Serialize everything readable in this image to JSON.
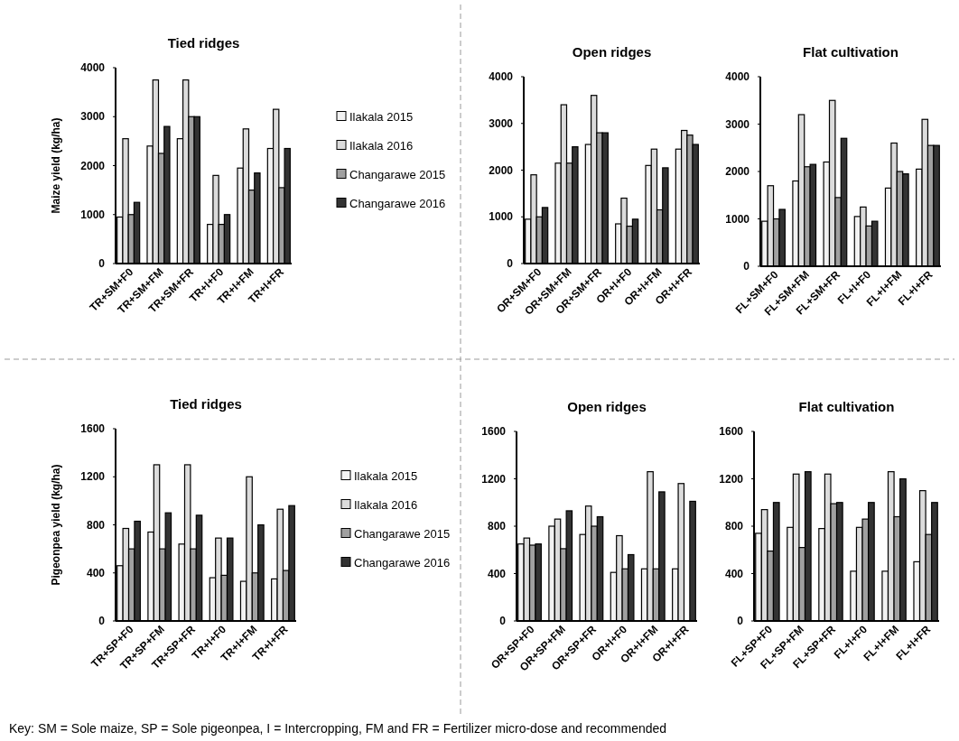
{
  "chart_data": [
    {
      "type": "bar",
      "title": "Tied ridges",
      "ylabel": "Maize yield (kg/ha)",
      "categories": [
        "TR+SM+F0",
        "TR+SM+FM",
        "TR+SM+FR",
        "TR+I+F0",
        "TR+I+FM",
        "TR+I+FR"
      ],
      "ylim": [
        0,
        4000
      ],
      "yticks": [
        0,
        1000,
        2000,
        3000,
        4000
      ],
      "legend": "right",
      "annotations": [
        "Key: SM = Sole maize, SP = Sole pigeonpea, I = Intercropping, FM and FR = Fertilizer micro-dose and recommended"
      ],
      "series": [
        {
          "name": "Ilakala 2015",
          "color": "#f2f2f2",
          "values": [
            950,
            2400,
            2550,
            800,
            1950,
            2350
          ]
        },
        {
          "name": "Ilakala 2016",
          "color": "#dcdcdc",
          "values": [
            2550,
            3750,
            3750,
            1800,
            2750,
            3150
          ]
        },
        {
          "name": "Changarawe 2015",
          "color": "#a0a0a0",
          "values": [
            1000,
            2250,
            3000,
            800,
            1500,
            1550
          ]
        },
        {
          "name": "Changarawe 2016",
          "color": "#333333",
          "values": [
            1250,
            2800,
            3000,
            1000,
            1850,
            2350
          ]
        }
      ]
    },
    {
      "type": "bar",
      "title": "Open ridges",
      "categories": [
        "OR+SM+F0",
        "OR+SM+FM",
        "OR+SM+FR",
        "OR+I+F0",
        "OR+I+FM",
        "OR+I+FR"
      ],
      "ylim": [
        0,
        4000
      ],
      "yticks": [
        0,
        1000,
        2000,
        3000,
        4000
      ],
      "series": [
        {
          "color": "#f2f2f2",
          "values": [
            950,
            2150,
            2550,
            850,
            2100,
            2450
          ]
        },
        {
          "color": "#dcdcdc",
          "values": [
            1900,
            3400,
            3600,
            1400,
            2450,
            2850
          ]
        },
        {
          "color": "#a0a0a0",
          "values": [
            1000,
            2150,
            2800,
            800,
            1150,
            2750
          ]
        },
        {
          "color": "#333333",
          "values": [
            1200,
            2500,
            2800,
            950,
            2050,
            2550
          ]
        }
      ]
    },
    {
      "type": "bar",
      "title": "Flat cultivation",
      "categories": [
        "FL+SM+F0",
        "FL+SM+FM",
        "FL+SM+FR",
        "FL+I+F0",
        "FL+I+FM",
        "FL+I+FR"
      ],
      "ylim": [
        0,
        4000
      ],
      "yticks": [
        0,
        1000,
        2000,
        3000,
        4000
      ],
      "series": [
        {
          "color": "#f2f2f2",
          "values": [
            950,
            1800,
            2200,
            1050,
            1650,
            2050
          ]
        },
        {
          "color": "#dcdcdc",
          "values": [
            1700,
            3200,
            3500,
            1250,
            2600,
            3100
          ]
        },
        {
          "color": "#a0a0a0",
          "values": [
            1000,
            2100,
            1450,
            850,
            2000,
            2550
          ]
        },
        {
          "color": "#333333",
          "values": [
            1200,
            2150,
            2700,
            950,
            1950,
            2550
          ]
        }
      ]
    },
    {
      "type": "bar",
      "title": "Tied ridges",
      "ylabel": "Pigeonpea yield (kg/ha)",
      "categories": [
        "TR+SP+F0",
        "TR+SP+FM",
        "TR+SP+FR",
        "TR+I+F0",
        "TR+I+FM",
        "TR+I+FR"
      ],
      "ylim": [
        0,
        1600
      ],
      "yticks": [
        0,
        400,
        800,
        1200,
        1600
      ],
      "legend": "right",
      "series": [
        {
          "name": "Ilakala 2015",
          "color": "#f2f2f2",
          "values": [
            460,
            740,
            640,
            360,
            330,
            350
          ]
        },
        {
          "name": "Ilakala 2016",
          "color": "#dcdcdc",
          "values": [
            770,
            1300,
            1300,
            690,
            1200,
            930
          ]
        },
        {
          "name": "Changarawe 2015",
          "color": "#a0a0a0",
          "values": [
            600,
            600,
            600,
            380,
            400,
            420
          ]
        },
        {
          "name": "Changarawe 2016",
          "color": "#333333",
          "values": [
            830,
            900,
            880,
            690,
            800,
            960
          ]
        }
      ]
    },
    {
      "type": "bar",
      "title": "Open ridges",
      "categories": [
        "OR+SP+F0",
        "OR+SP+FM",
        "OR+SP+FR",
        "OR+I+F0",
        "OR+I+FM",
        "OR+I+FR"
      ],
      "ylim": [
        0,
        1600
      ],
      "yticks": [
        0,
        400,
        800,
        1200,
        1600
      ],
      "series": [
        {
          "color": "#f2f2f2",
          "values": [
            650,
            800,
            730,
            410,
            440,
            440
          ]
        },
        {
          "color": "#dcdcdc",
          "values": [
            700,
            860,
            970,
            720,
            1260,
            1160
          ]
        },
        {
          "color": "#a0a0a0",
          "values": [
            640,
            610,
            800,
            440,
            440,
            null
          ]
        },
        {
          "color": "#333333",
          "values": [
            650,
            930,
            880,
            560,
            1090,
            1010
          ]
        }
      ]
    },
    {
      "type": "bar",
      "title": "Flat cultivation",
      "categories": [
        "FL+SP+F0",
        "FL+SP+FM",
        "FL+SP+FR",
        "FL+I+F0",
        "FL+I+FM",
        "FL+I+FR"
      ],
      "ylim": [
        0,
        1600
      ],
      "yticks": [
        0,
        400,
        800,
        1200,
        1600
      ],
      "series": [
        {
          "color": "#f2f2f2",
          "values": [
            740,
            790,
            780,
            420,
            420,
            500
          ]
        },
        {
          "color": "#dcdcdc",
          "values": [
            940,
            1240,
            1240,
            790,
            1260,
            1100
          ]
        },
        {
          "color": "#a0a0a0",
          "values": [
            590,
            620,
            990,
            860,
            880,
            730
          ]
        },
        {
          "color": "#333333",
          "values": [
            1000,
            1260,
            1000,
            1000,
            1200,
            1000
          ]
        }
      ]
    }
  ]
}
